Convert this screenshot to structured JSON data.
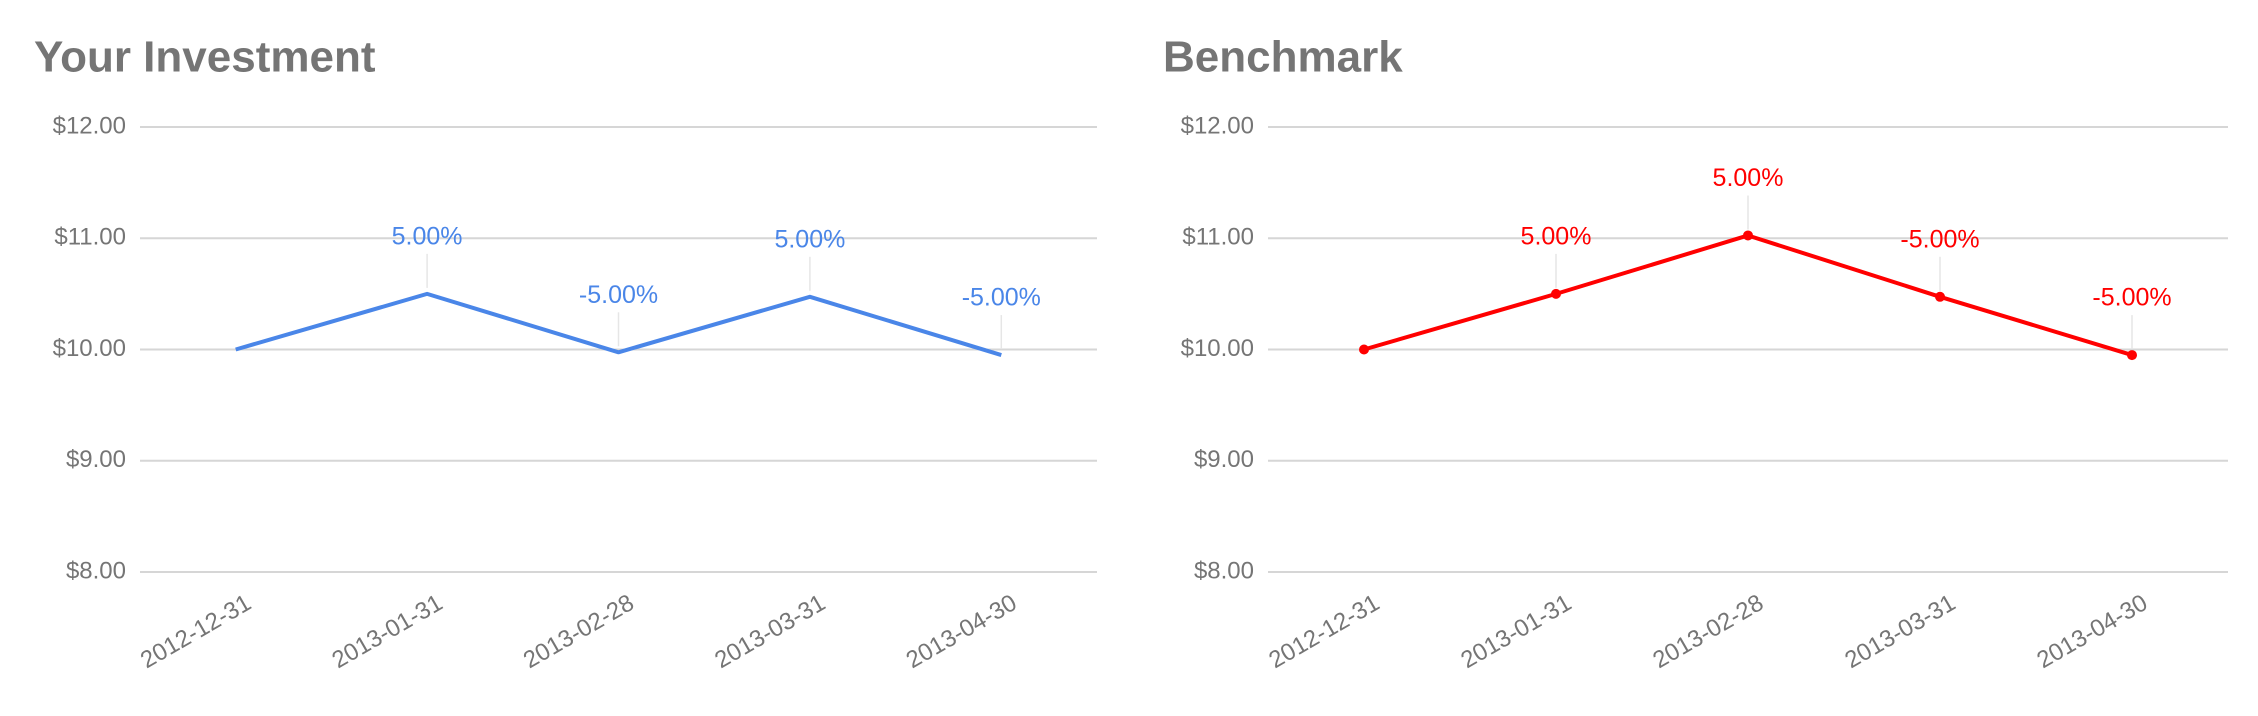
{
  "chart_data": [
    {
      "type": "line",
      "title": "Your Investment",
      "categories": [
        "2012-12-31",
        "2013-01-31",
        "2013-02-28",
        "2013-03-31",
        "2013-04-30"
      ],
      "series": [
        {
          "name": "Your Investment",
          "color": "#4a86e8",
          "values": [
            10,
            10.5,
            9.975,
            10.47375,
            9.95
          ],
          "changes": [
            null,
            5,
            -5,
            5,
            -5
          ],
          "change_labels": [
            null,
            "5.00%",
            "-5.00%",
            "5.00%",
            "-5.00%"
          ]
        }
      ],
      "markers": false,
      "ylim": [
        8,
        12
      ],
      "yticks": [
        {
          "value": 8,
          "label": "$8.00"
        },
        {
          "value": 9,
          "label": "$9.00"
        },
        {
          "value": 10,
          "label": "$10.00"
        },
        {
          "value": 11,
          "label": "$11.00"
        },
        {
          "value": 12,
          "label": "$12.00"
        }
      ],
      "grid": true
    },
    {
      "type": "line",
      "title": "Benchmark",
      "categories": [
        "2012-12-31",
        "2013-01-31",
        "2013-02-28",
        "2013-03-31",
        "2013-04-30"
      ],
      "series": [
        {
          "name": "Benchmark",
          "color": "#ff0000",
          "values": [
            10,
            10.5,
            11.025,
            10.47375,
            9.95
          ],
          "changes": [
            null,
            5,
            5,
            -5,
            -5
          ],
          "change_labels": [
            null,
            "5.00%",
            "5.00%",
            "-5.00%",
            "-5.00%"
          ]
        }
      ],
      "markers": true,
      "ylim": [
        8,
        12
      ],
      "yticks": [
        {
          "value": 8,
          "label": "$8.00"
        },
        {
          "value": 9,
          "label": "$9.00"
        },
        {
          "value": 10,
          "label": "$10.00"
        },
        {
          "value": 11,
          "label": "$11.00"
        },
        {
          "value": 12,
          "label": "$12.00"
        }
      ],
      "grid": true
    }
  ]
}
